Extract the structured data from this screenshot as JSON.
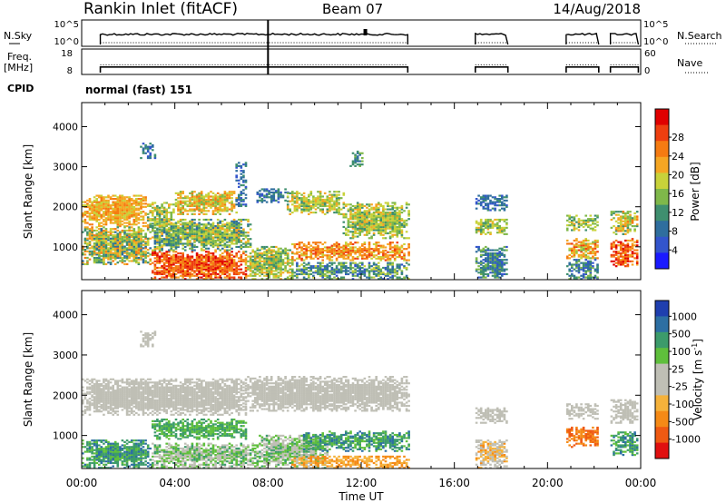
{
  "header": {
    "station": "Rankin Inlet (fitACF)",
    "beam": "Beam 07",
    "date": "14/Aug/2018"
  },
  "chart_data": [
    {
      "type": "line",
      "panel": "noise",
      "left_label": "N.Sky",
      "right_label": "N.Search",
      "left_ticks": [
        "10^5",
        "10^0"
      ],
      "right_ticks": [
        "10^5",
        "10^0"
      ],
      "segments": [
        [
          0.8,
          14.0
        ],
        [
          16.9,
          18.3
        ],
        [
          20.8,
          22.2
        ],
        [
          22.7,
          23.9
        ]
      ],
      "level_fraction": 0.25
    },
    {
      "type": "line",
      "panel": "frequency",
      "left_label": "Freq.",
      "left_unit": "[MHz]",
      "right_label": "Nave",
      "left_ticks": [
        "18",
        "8"
      ],
      "right_ticks": [
        "60",
        "0"
      ],
      "segments": [
        [
          0.8,
          14.0
        ],
        [
          16.9,
          18.3
        ],
        [
          20.8,
          22.2
        ],
        [
          22.7,
          23.9
        ]
      ],
      "freq_fraction": 0.15,
      "nave_fraction": 0.45
    },
    {
      "type": "heatmap",
      "panel": "cpid",
      "label": "CPID",
      "value": "normal (fast) 151"
    },
    {
      "type": "heatmap",
      "panel": "power",
      "ylabel": "Slant Range [km]",
      "ylim": [
        180,
        4600
      ],
      "yticks": [
        1000,
        2000,
        3000,
        4000
      ],
      "xlim": [
        0,
        24
      ],
      "colorbar": {
        "label": "Power [dB]",
        "ticks": [
          "4",
          "8",
          "12",
          "16",
          "20",
          "24",
          "28"
        ],
        "colors": [
          "#1a1aff",
          "#3355cc",
          "#2f6e9e",
          "#3f8f6f",
          "#7fb84a",
          "#c8d23a",
          "#f5a623",
          "#f57b12",
          "#ee3f10",
          "#e00000"
        ]
      },
      "blobs": [
        {
          "t0": 0.0,
          "t1": 2.8,
          "r0": 1500,
          "r1": 2300,
          "level": [
            5,
            7
          ]
        },
        {
          "t0": 2.8,
          "t1": 4.0,
          "r0": 1400,
          "r1": 2100,
          "level": [
            3,
            6
          ]
        },
        {
          "t0": 4.0,
          "t1": 6.6,
          "r0": 1800,
          "r1": 2400,
          "level": [
            4,
            7
          ]
        },
        {
          "t0": 7.5,
          "t1": 8.8,
          "r0": 2100,
          "r1": 2450,
          "level": [
            1,
            3
          ]
        },
        {
          "t0": 8.8,
          "t1": 11.2,
          "r0": 1800,
          "r1": 2400,
          "level": [
            3,
            6
          ]
        },
        {
          "t0": 11.2,
          "t1": 14.0,
          "r0": 1200,
          "r1": 2100,
          "level": [
            3,
            6
          ]
        },
        {
          "t0": 0.0,
          "t1": 3.0,
          "r0": 550,
          "r1": 1500,
          "level": [
            2,
            7
          ]
        },
        {
          "t0": 3.0,
          "t1": 7.0,
          "r0": 180,
          "r1": 900,
          "level": [
            6,
            9
          ]
        },
        {
          "t0": 3.0,
          "t1": 7.2,
          "r0": 900,
          "r1": 1700,
          "level": [
            2,
            6
          ]
        },
        {
          "t0": 7.0,
          "t1": 9.0,
          "r0": 180,
          "r1": 1000,
          "level": [
            3,
            6
          ]
        },
        {
          "t0": 9.0,
          "t1": 14.0,
          "r0": 650,
          "r1": 1100,
          "level": [
            5,
            8
          ]
        },
        {
          "t0": 9.0,
          "t1": 14.0,
          "r0": 180,
          "r1": 600,
          "level": [
            1,
            5
          ]
        },
        {
          "t0": 16.9,
          "t1": 18.3,
          "r0": 1300,
          "r1": 1700,
          "level": [
            3,
            6
          ]
        },
        {
          "t0": 16.9,
          "t1": 18.3,
          "r0": 180,
          "r1": 1000,
          "level": [
            1,
            4
          ]
        },
        {
          "t0": 16.9,
          "t1": 18.3,
          "r0": 1900,
          "r1": 2300,
          "level": [
            1,
            3
          ]
        },
        {
          "t0": 20.8,
          "t1": 22.2,
          "r0": 1400,
          "r1": 1800,
          "level": [
            3,
            6
          ]
        },
        {
          "t0": 20.8,
          "t1": 22.2,
          "r0": 700,
          "r1": 1200,
          "level": [
            4,
            8
          ]
        },
        {
          "t0": 20.8,
          "t1": 22.2,
          "r0": 180,
          "r1": 700,
          "level": [
            1,
            4
          ]
        },
        {
          "t0": 22.7,
          "t1": 23.9,
          "r0": 1300,
          "r1": 1900,
          "level": [
            3,
            7
          ]
        },
        {
          "t0": 22.7,
          "t1": 23.9,
          "r0": 500,
          "r1": 1200,
          "level": [
            6,
            9
          ]
        },
        {
          "t0": 2.5,
          "t1": 3.2,
          "r0": 3200,
          "r1": 3600,
          "level": [
            1,
            3
          ]
        },
        {
          "t0": 6.6,
          "t1": 7.0,
          "r0": 2000,
          "r1": 3100,
          "level": [
            1,
            3
          ]
        },
        {
          "t0": 11.5,
          "t1": 12.0,
          "r0": 3000,
          "r1": 3400,
          "level": [
            2,
            4
          ]
        }
      ]
    },
    {
      "type": "heatmap",
      "panel": "velocity",
      "ylabel": "Slant Range [km]",
      "ylim": [
        180,
        4600
      ],
      "yticks": [
        1000,
        2000,
        3000,
        4000
      ],
      "xlim": [
        0,
        24
      ],
      "xticks": [
        "00:00",
        "04:00",
        "08:00",
        "12:00",
        "16:00",
        "20:00",
        "00:00"
      ],
      "xlabel": "Time UT",
      "colorbar": {
        "label": "Velocity [m s-1]",
        "unit_base": "Velocity [m s",
        "unit_exp": "-1",
        "unit_end": "]",
        "ticks": [
          "1000",
          "500",
          "100",
          "25",
          "-25",
          "-100",
          "-500",
          "-1000"
        ],
        "colors": [
          "#1f3faf",
          "#2d6fa3",
          "#3c9b6b",
          "#5fbf3c",
          "#bfbfb5",
          "#bfbfb5",
          "#f5b23b",
          "#f58a16",
          "#ef5a12",
          "#e01010"
        ]
      },
      "blobs": [
        {
          "t0": 0.0,
          "t1": 7.0,
          "r0": 1500,
          "r1": 2400,
          "level": [
            4,
            5
          ]
        },
        {
          "t0": 7.0,
          "t1": 14.0,
          "r0": 1600,
          "r1": 2450,
          "level": [
            4,
            5
          ]
        },
        {
          "t0": 3.0,
          "t1": 7.0,
          "r0": 900,
          "r1": 1400,
          "level": [
            2,
            3
          ]
        },
        {
          "t0": 0.0,
          "t1": 3.0,
          "r0": 180,
          "r1": 900,
          "level": [
            1,
            3
          ]
        },
        {
          "t0": 3.0,
          "t1": 7.5,
          "r0": 180,
          "r1": 800,
          "level": [
            2,
            5
          ]
        },
        {
          "t0": 7.5,
          "t1": 10.5,
          "r0": 180,
          "r1": 1000,
          "level": [
            2,
            5
          ]
        },
        {
          "t0": 9.5,
          "t1": 14.0,
          "r0": 600,
          "r1": 1100,
          "level": [
            1,
            3
          ]
        },
        {
          "t0": 9.0,
          "t1": 14.0,
          "r0": 180,
          "r1": 500,
          "level": [
            6,
            7
          ]
        },
        {
          "t0": 16.9,
          "t1": 18.3,
          "r0": 1300,
          "r1": 1700,
          "level": [
            4,
            5
          ]
        },
        {
          "t0": 16.9,
          "t1": 18.3,
          "r0": 180,
          "r1": 900,
          "level": [
            4,
            7
          ]
        },
        {
          "t0": 20.8,
          "t1": 22.2,
          "r0": 1400,
          "r1": 1800,
          "level": [
            4,
            5
          ]
        },
        {
          "t0": 20.8,
          "t1": 22.2,
          "r0": 700,
          "r1": 1200,
          "level": [
            7,
            8
          ]
        },
        {
          "t0": 22.7,
          "t1": 23.9,
          "r0": 1300,
          "r1": 1900,
          "level": [
            4,
            5
          ]
        },
        {
          "t0": 22.7,
          "t1": 23.9,
          "r0": 500,
          "r1": 1100,
          "level": [
            1,
            3
          ]
        },
        {
          "t0": 2.5,
          "t1": 3.2,
          "r0": 3200,
          "r1": 3600,
          "level": [
            4,
            5
          ]
        }
      ]
    }
  ]
}
